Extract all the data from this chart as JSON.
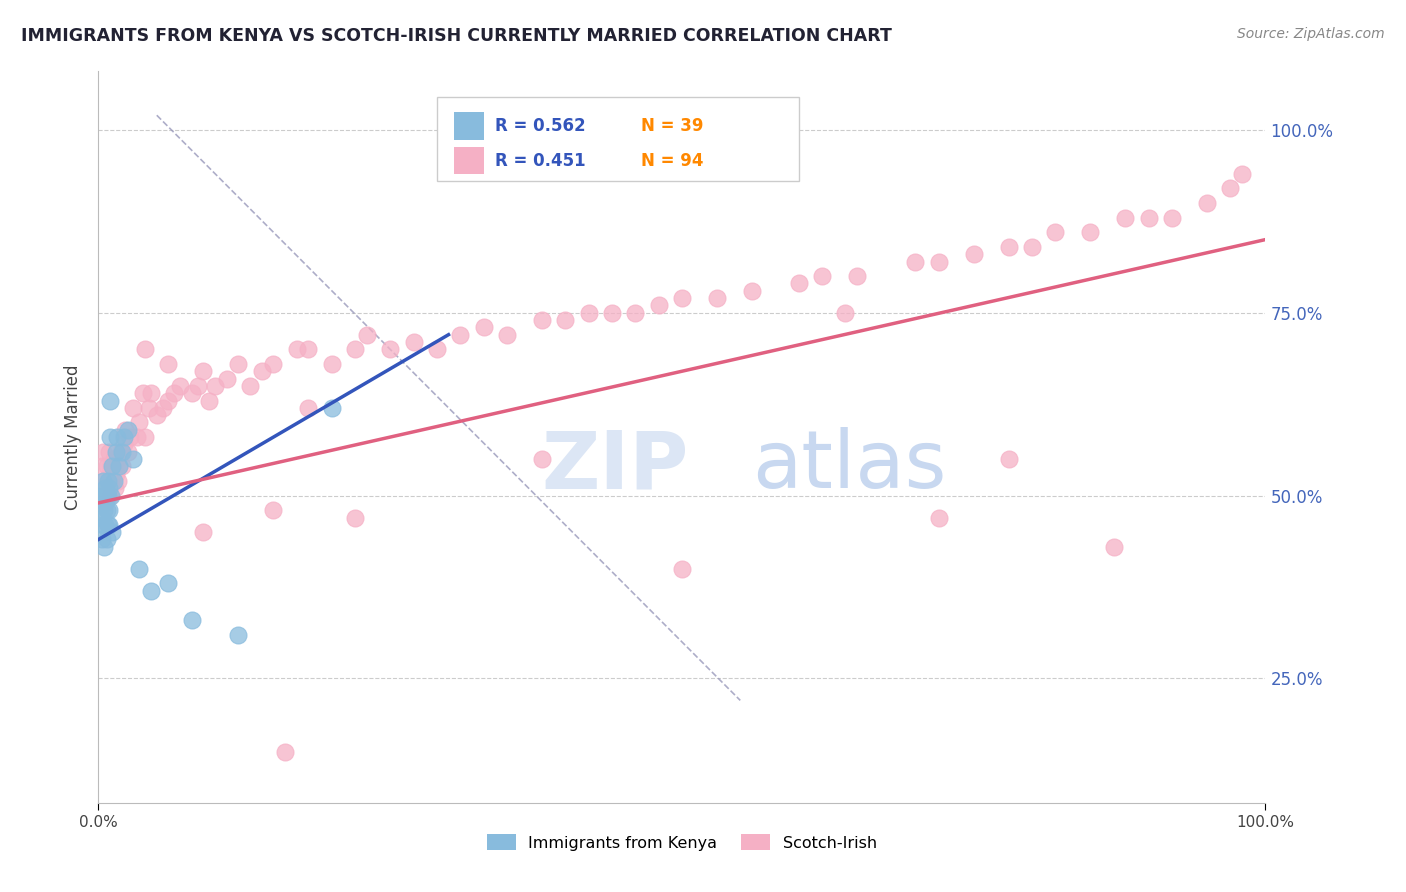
{
  "title": "IMMIGRANTS FROM KENYA VS SCOTCH-IRISH CURRENTLY MARRIED CORRELATION CHART",
  "source": "Source: ZipAtlas.com",
  "ylabel": "Currently Married",
  "legend_label_blue": "Immigrants from Kenya",
  "legend_label_pink": "Scotch-Irish",
  "r_blue": "0.562",
  "n_blue": "39",
  "r_pink": "0.451",
  "n_pink": "94",
  "yticks": [
    0.25,
    0.5,
    0.75,
    1.0
  ],
  "ytick_labels": [
    "25.0%",
    "50.0%",
    "75.0%",
    "100.0%"
  ],
  "xlim": [
    0.0,
    1.0
  ],
  "ylim": [
    0.08,
    1.08
  ],
  "background_color": "#ffffff",
  "grid_color": "#cccccc",
  "blue_scatter_color": "#88bbdd",
  "pink_scatter_color": "#f5b0c5",
  "blue_line_color": "#3355bb",
  "pink_line_color": "#e06080",
  "diagonal_color": "#9999bb",
  "title_color": "#222233",
  "axis_label_color": "#4466bb",
  "watermark_color": "#dce6f5",
  "kenya_x": [
    0.002,
    0.003,
    0.003,
    0.004,
    0.004,
    0.005,
    0.005,
    0.005,
    0.006,
    0.006,
    0.006,
    0.007,
    0.007,
    0.007,
    0.008,
    0.008,
    0.008,
    0.009,
    0.009,
    0.009,
    0.01,
    0.01,
    0.011,
    0.012,
    0.012,
    0.013,
    0.015,
    0.016,
    0.018,
    0.02,
    0.022,
    0.025,
    0.03,
    0.035,
    0.045,
    0.06,
    0.08,
    0.12,
    0.2
  ],
  "kenya_y": [
    0.5,
    0.47,
    0.44,
    0.52,
    0.46,
    0.5,
    0.48,
    0.43,
    0.49,
    0.51,
    0.46,
    0.5,
    0.48,
    0.44,
    0.5,
    0.52,
    0.46,
    0.48,
    0.51,
    0.46,
    0.58,
    0.63,
    0.5,
    0.54,
    0.45,
    0.52,
    0.56,
    0.58,
    0.54,
    0.56,
    0.58,
    0.59,
    0.55,
    0.4,
    0.37,
    0.38,
    0.33,
    0.31,
    0.62
  ],
  "scotch_x": [
    0.003,
    0.004,
    0.005,
    0.006,
    0.007,
    0.008,
    0.009,
    0.01,
    0.01,
    0.011,
    0.012,
    0.013,
    0.014,
    0.015,
    0.016,
    0.017,
    0.018,
    0.019,
    0.02,
    0.022,
    0.023,
    0.025,
    0.027,
    0.03,
    0.033,
    0.035,
    0.038,
    0.04,
    0.043,
    0.045,
    0.05,
    0.055,
    0.06,
    0.065,
    0.07,
    0.08,
    0.085,
    0.09,
    0.095,
    0.1,
    0.11,
    0.12,
    0.13,
    0.14,
    0.15,
    0.17,
    0.18,
    0.2,
    0.22,
    0.23,
    0.25,
    0.27,
    0.29,
    0.31,
    0.33,
    0.35,
    0.38,
    0.4,
    0.42,
    0.44,
    0.46,
    0.48,
    0.5,
    0.53,
    0.56,
    0.6,
    0.62,
    0.65,
    0.7,
    0.72,
    0.75,
    0.78,
    0.8,
    0.82,
    0.85,
    0.88,
    0.9,
    0.92,
    0.95,
    0.97,
    0.98,
    0.06,
    0.04,
    0.18,
    0.38,
    0.5,
    0.64,
    0.78,
    0.22,
    0.72,
    0.15,
    0.09,
    0.16,
    0.87
  ],
  "scotch_y": [
    0.54,
    0.56,
    0.52,
    0.5,
    0.54,
    0.52,
    0.56,
    0.5,
    0.53,
    0.54,
    0.52,
    0.55,
    0.51,
    0.53,
    0.55,
    0.52,
    0.54,
    0.56,
    0.54,
    0.57,
    0.59,
    0.56,
    0.58,
    0.62,
    0.58,
    0.6,
    0.64,
    0.58,
    0.62,
    0.64,
    0.61,
    0.62,
    0.63,
    0.64,
    0.65,
    0.64,
    0.65,
    0.67,
    0.63,
    0.65,
    0.66,
    0.68,
    0.65,
    0.67,
    0.68,
    0.7,
    0.7,
    0.68,
    0.7,
    0.72,
    0.7,
    0.71,
    0.7,
    0.72,
    0.73,
    0.72,
    0.74,
    0.74,
    0.75,
    0.75,
    0.75,
    0.76,
    0.77,
    0.77,
    0.78,
    0.79,
    0.8,
    0.8,
    0.82,
    0.82,
    0.83,
    0.84,
    0.84,
    0.86,
    0.86,
    0.88,
    0.88,
    0.88,
    0.9,
    0.92,
    0.94,
    0.68,
    0.7,
    0.62,
    0.55,
    0.4,
    0.75,
    0.55,
    0.47,
    0.47,
    0.48,
    0.45,
    0.15,
    0.43
  ],
  "blue_line_x0": 0.0,
  "blue_line_y0": 0.44,
  "blue_line_x1": 0.3,
  "blue_line_y1": 0.72,
  "pink_line_x0": 0.0,
  "pink_line_y0": 0.49,
  "pink_line_x1": 1.0,
  "pink_line_y1": 0.85
}
